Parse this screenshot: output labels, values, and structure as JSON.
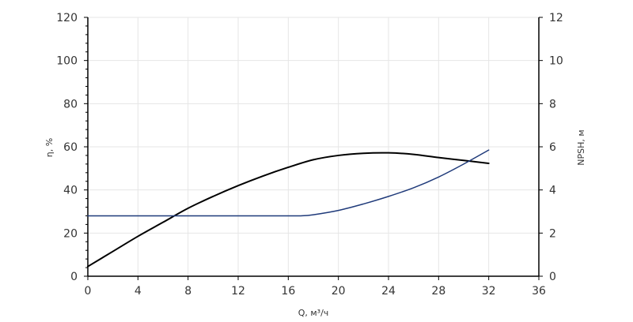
{
  "chart_data": {
    "type": "line",
    "title": "",
    "xlabel": "Q, м³/ч",
    "ylabel_left": "η, %",
    "ylabel_right": "NPSH, м",
    "xlim": [
      0,
      36
    ],
    "ylim_left": [
      0,
      120
    ],
    "ylim_right": [
      0,
      12
    ],
    "x_ticks": [
      "0",
      "4",
      "8",
      "12",
      "16",
      "20",
      "24",
      "28",
      "32",
      "36"
    ],
    "y_left_ticks": [
      "0",
      "20",
      "40",
      "60",
      "80",
      "100",
      "120"
    ],
    "y_right_ticks": [
      "0",
      "2",
      "4",
      "6",
      "8",
      "10",
      "12"
    ],
    "grid": true,
    "series": [
      {
        "axis": "left",
        "color": "#000000",
        "x": [
          0,
          2,
          4,
          6,
          8,
          10,
          12,
          14,
          16,
          18,
          20,
          22,
          24,
          26,
          28,
          30,
          32
        ],
        "y": [
          4.5,
          11.5,
          18.5,
          25,
          31.5,
          37,
          42,
          46.5,
          50.5,
          54,
          56,
          57,
          57.2,
          56.5,
          55,
          53.7,
          52.3
        ]
      },
      {
        "axis": "right",
        "color": "#1f3a7a",
        "x": [
          0,
          4,
          8,
          12,
          16,
          17,
          18,
          20,
          22,
          24,
          26,
          28,
          30,
          32
        ],
        "y": [
          2.8,
          2.8,
          2.8,
          2.8,
          2.8,
          2.8,
          2.85,
          3.05,
          3.35,
          3.7,
          4.1,
          4.6,
          5.2,
          5.85
        ]
      }
    ]
  }
}
